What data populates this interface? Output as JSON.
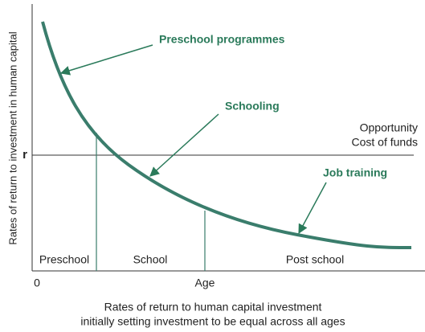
{
  "diagram": {
    "y_axis_label": "Rates of return to investment in human capital",
    "r_label": "r",
    "line_label": [
      "Opportunity",
      "Cost of funds"
    ],
    "annotations": [
      "Preschool programmes",
      "Schooling",
      "Job training"
    ],
    "stages": [
      "Preschool",
      "School",
      "Post school"
    ],
    "origin_label": "0",
    "x_axis_label": "Age",
    "caption": [
      "Rates of return to human capital investment",
      "initially setting investment to be equal across all ages"
    ]
  }
}
